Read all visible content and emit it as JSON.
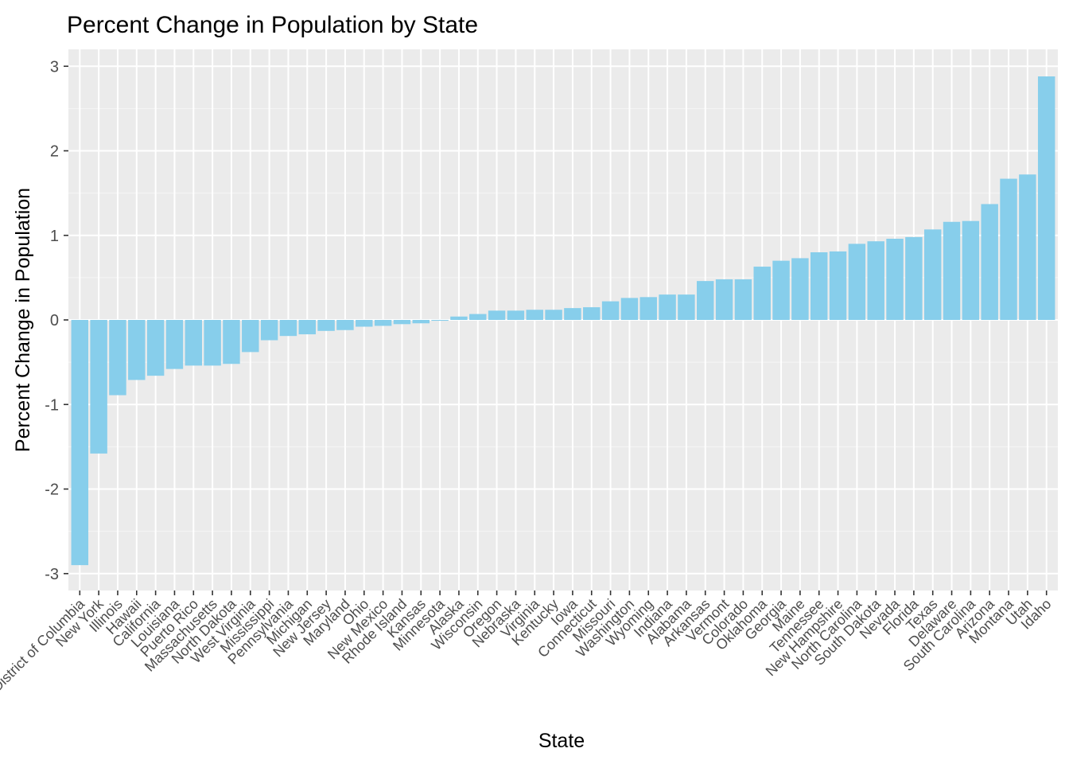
{
  "chart_data": {
    "type": "bar",
    "title": "Percent Change in Population by State",
    "xlabel": "State",
    "ylabel": "Percent Change in Population",
    "ylim": [
      -3.2,
      3.2
    ],
    "yticks": [
      -3,
      -2,
      -1,
      0,
      1,
      2,
      3
    ],
    "grid": true,
    "legend": "none",
    "bar_color": "#87CEEB",
    "categories": [
      "District of Columbia",
      "New York",
      "Illinois",
      "Hawaii",
      "California",
      "Louisiana",
      "Puerto Rico",
      "Massachusetts",
      "North Dakota",
      "West Virginia",
      "Mississippi",
      "Pennsylvania",
      "Michigan",
      "New Jersey",
      "Maryland",
      "Ohio",
      "New Mexico",
      "Rhode Island",
      "Kansas",
      "Minnesota",
      "Alaska",
      "Wisconsin",
      "Oregon",
      "Nebraska",
      "Virginia",
      "Kentucky",
      "Iowa",
      "Connecticut",
      "Missouri",
      "Washington",
      "Wyoming",
      "Indiana",
      "Alabama",
      "Arkansas",
      "Vermont",
      "Colorado",
      "Oklahoma",
      "Georgia",
      "Maine",
      "Tennessee",
      "New Hampshire",
      "North Carolina",
      "South Dakota",
      "Nevada",
      "Florida",
      "Texas",
      "Delaware",
      "South Carolina",
      "Arizona",
      "Montana",
      "Utah",
      "Idaho"
    ],
    "values": [
      -2.9,
      -1.58,
      -0.89,
      -0.71,
      -0.66,
      -0.58,
      -0.54,
      -0.54,
      -0.52,
      -0.38,
      -0.24,
      -0.19,
      -0.17,
      -0.13,
      -0.12,
      -0.08,
      -0.07,
      -0.05,
      -0.04,
      -0.01,
      0.04,
      0.07,
      0.11,
      0.11,
      0.12,
      0.12,
      0.14,
      0.15,
      0.22,
      0.26,
      0.27,
      0.3,
      0.3,
      0.46,
      0.48,
      0.48,
      0.63,
      0.7,
      0.73,
      0.8,
      0.81,
      0.9,
      0.93,
      0.96,
      0.98,
      1.07,
      1.16,
      1.17,
      1.37,
      1.67,
      1.72,
      2.88
    ]
  }
}
